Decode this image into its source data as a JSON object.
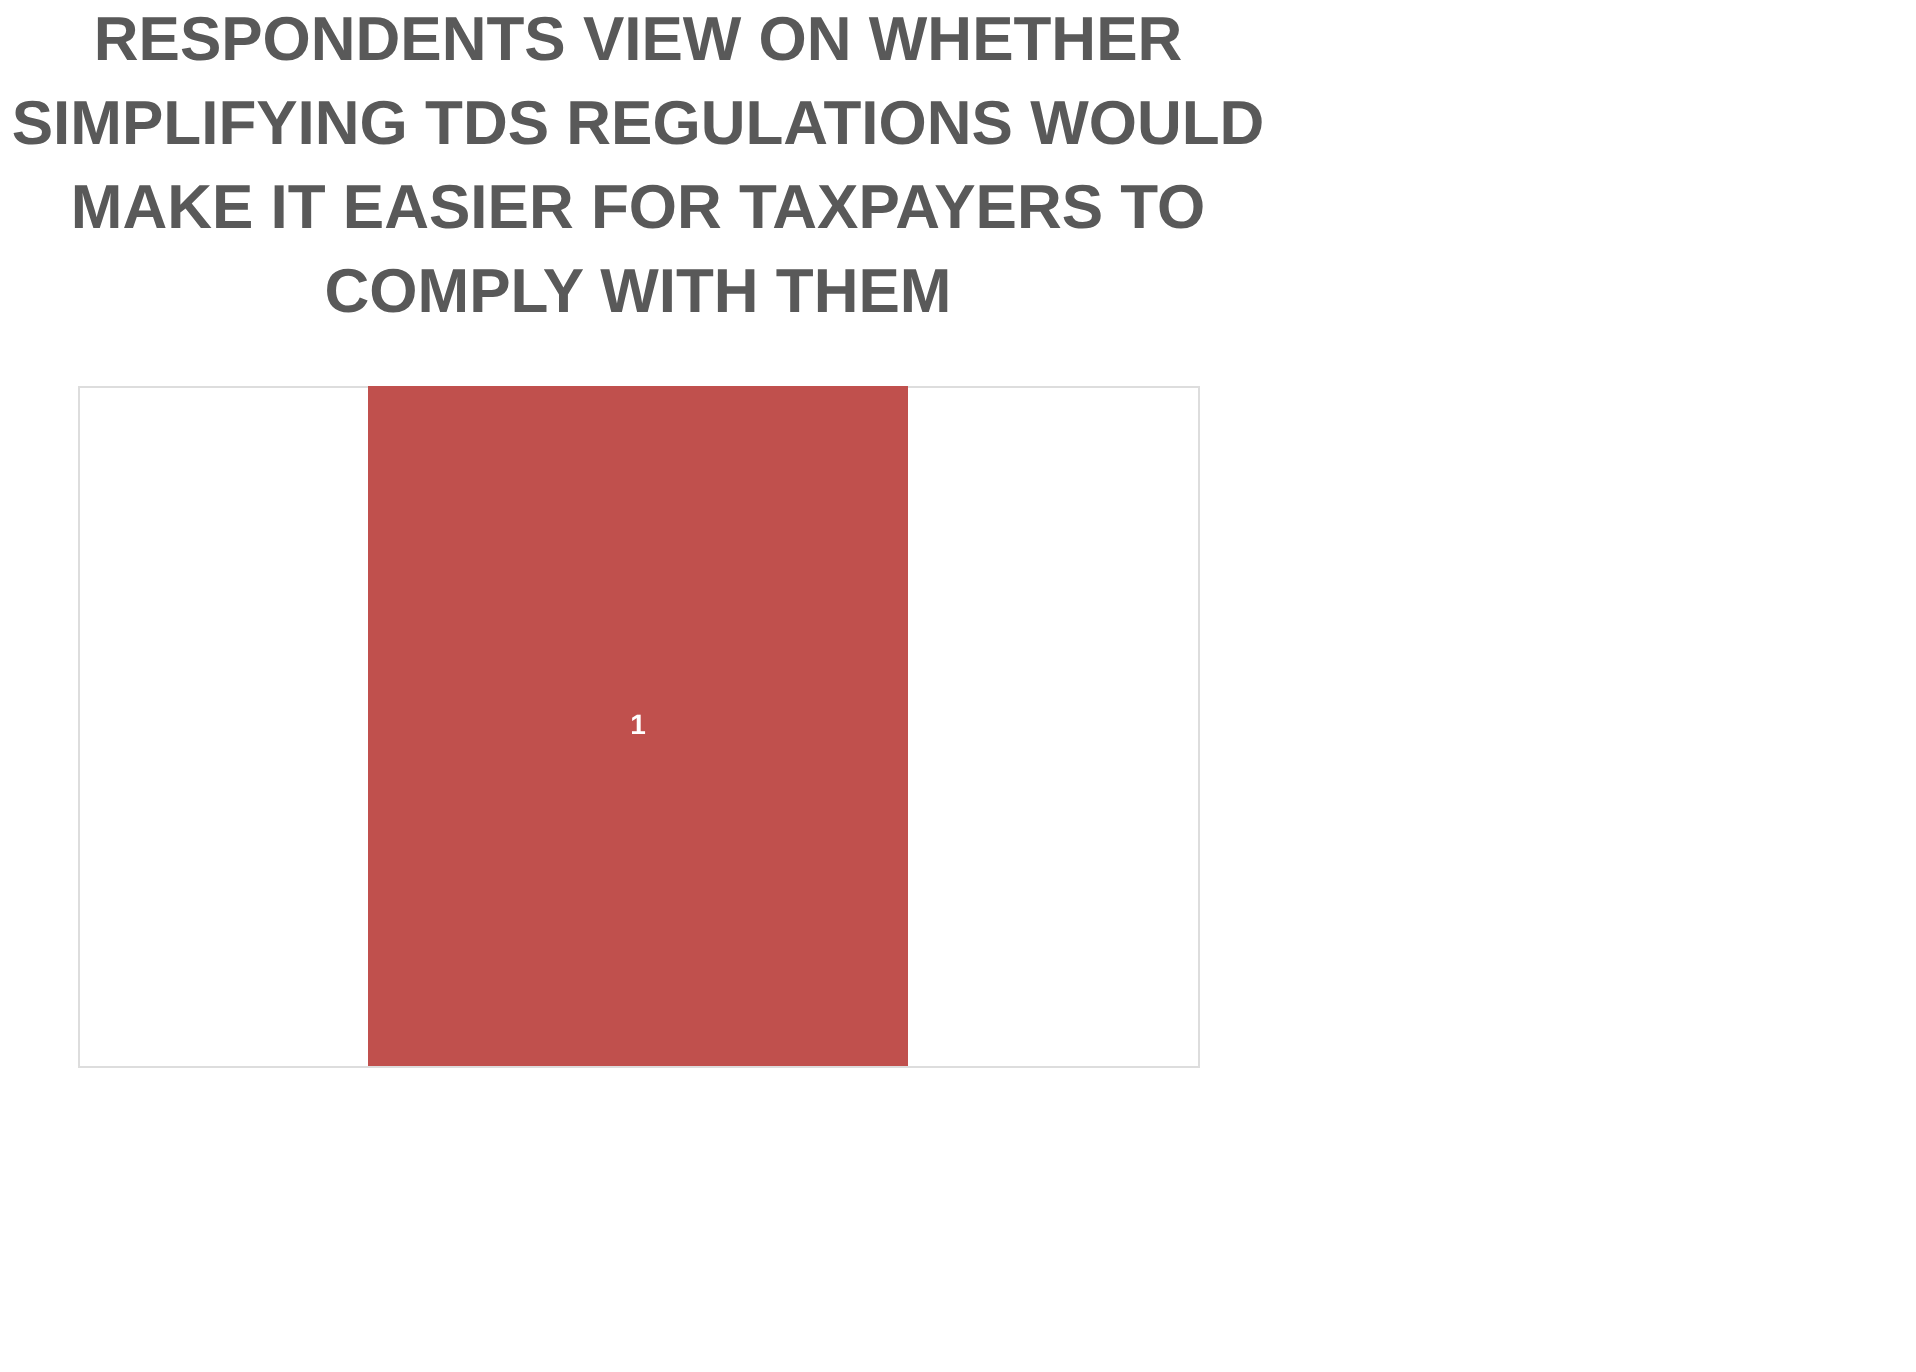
{
  "chart_data": {
    "type": "bar",
    "title": "RESPONDENTS VIEW ON WHETHER SIMPLIFYING TDS REGULATIONS WOULD MAKE IT EASIER FOR TAXPAYERS TO COMPLY WITH THEM",
    "categories": [
      null
    ],
    "values": [
      1
    ],
    "color": "#c0504d",
    "data_labels": true
  }
}
